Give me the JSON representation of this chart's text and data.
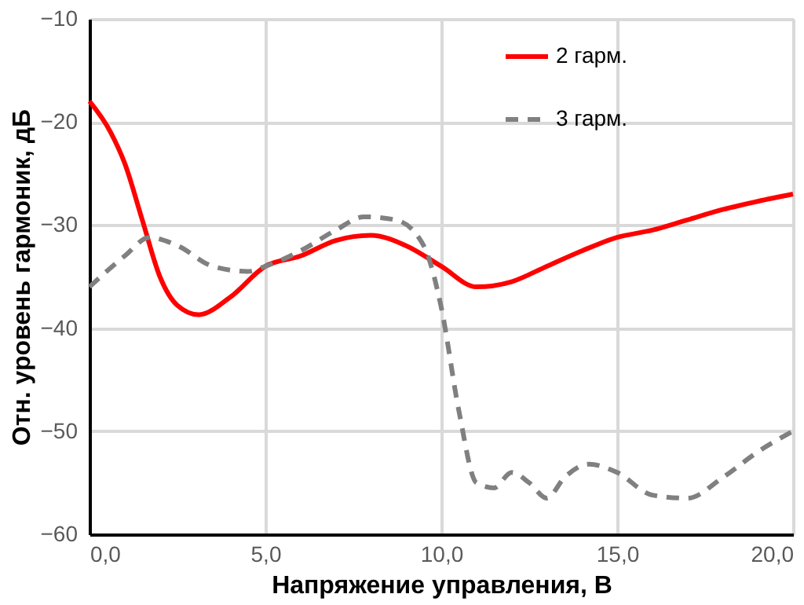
{
  "chart_data": {
    "type": "line",
    "xlabel": "Напряжение управления, В",
    "ylabel": "Отн. уровень гармоник, дБ",
    "xlim": [
      0,
      20
    ],
    "ylim": [
      -60,
      -10
    ],
    "xticks": [
      {
        "value": 0,
        "label": "0,0"
      },
      {
        "value": 5,
        "label": "5,0"
      },
      {
        "value": 10,
        "label": "10,0"
      },
      {
        "value": 15,
        "label": "15,0"
      },
      {
        "value": 20,
        "label": "20,0"
      }
    ],
    "yticks": [
      -60,
      -50,
      -40,
      -30,
      -20,
      -10
    ],
    "grid": true,
    "legend": "top right",
    "marker": "none",
    "series": [
      {
        "name": "2 гарм.",
        "color": "#ff0000",
        "line_style": "solid",
        "x": [
          0,
          0.6,
          1,
          1.5,
          2,
          2.5,
          3.1,
          4,
          5,
          6,
          7,
          8,
          9,
          10,
          11,
          12,
          13,
          14,
          15,
          16,
          17,
          18,
          19,
          20
        ],
        "values": [
          -18,
          -21,
          -24,
          -29.5,
          -35,
          -37.8,
          -38.7,
          -37,
          -34,
          -33,
          -31.5,
          -31,
          -32,
          -34,
          -36,
          -35.5,
          -34,
          -32.5,
          -31.2,
          -30.5,
          -29.5,
          -28.5,
          -27.7,
          -27
        ]
      },
      {
        "name": "3 гарм.",
        "color": "#808080",
        "line_style": "dashed",
        "x": [
          0,
          1,
          1.7,
          2.5,
          3.5,
          4.5,
          5,
          6,
          7,
          7.8,
          8.7,
          9.5,
          10,
          10.5,
          11,
          11.5,
          12,
          12.5,
          13,
          13.5,
          14.2,
          15,
          16,
          17,
          18,
          19,
          20
        ],
        "values": [
          -36,
          -33,
          -31.2,
          -32,
          -34,
          -34.5,
          -34,
          -32.5,
          -30.5,
          -29.2,
          -29.5,
          -32,
          -38,
          -48,
          -55,
          -55.5,
          -54,
          -55,
          -56.5,
          -54.5,
          -53.2,
          -54,
          -56.2,
          -56.5,
          -54.5,
          -52,
          -50
        ]
      }
    ]
  }
}
